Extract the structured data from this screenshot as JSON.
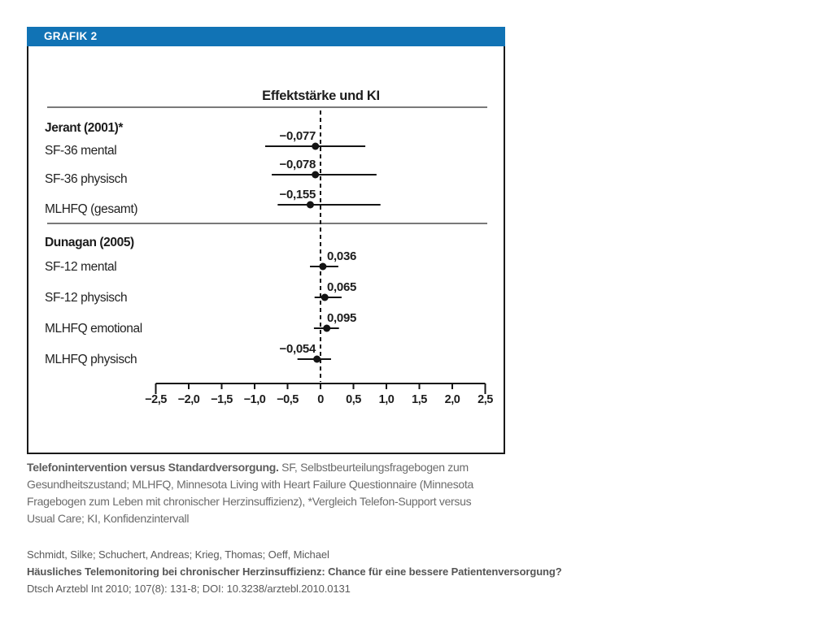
{
  "figure": {
    "header": "GRAFIK 2"
  },
  "chart_data": {
    "type": "forest",
    "title": "Effektstärke und KI",
    "xlabel": "",
    "xlim": [
      -2.5,
      2.5
    ],
    "x_tick_values": [
      -2.5,
      -2.0,
      -1.5,
      -1.0,
      -0.5,
      0,
      0.5,
      1.0,
      1.5,
      2.0,
      2.5
    ],
    "x_tick_labels": [
      "−2,5",
      "−2,0",
      "−1,5",
      "−1,0",
      "−0,5",
      "0",
      "0,5",
      "1,0",
      "1,5",
      "2,0",
      "2,5"
    ],
    "zero_line": 0,
    "grid": false,
    "groups": [
      {
        "label": "Jerant (2001)*",
        "rows": [
          {
            "label": "SF-36 mental",
            "value": -0.077,
            "value_label": "−0,077",
            "ci_low": -0.84,
            "ci_high": 0.68
          },
          {
            "label": "SF-36 physisch",
            "value": -0.078,
            "value_label": "−0,078",
            "ci_low": -0.74,
            "ci_high": 0.85
          },
          {
            "label": "MLHFQ (gesamt)",
            "value": -0.155,
            "value_label": "−0,155",
            "ci_low": -0.65,
            "ci_high": 0.91
          }
        ]
      },
      {
        "label": "Dunagan (2005)",
        "rows": [
          {
            "label": "SF-12 mental",
            "value": 0.036,
            "value_label": "0,036",
            "ci_low": -0.16,
            "ci_high": 0.27
          },
          {
            "label": "SF-12 physisch",
            "value": 0.065,
            "value_label": "0,065",
            "ci_low": -0.09,
            "ci_high": 0.32
          },
          {
            "label": "MLHFQ emotional",
            "value": 0.095,
            "value_label": "0,095",
            "ci_low": -0.1,
            "ci_high": 0.28
          },
          {
            "label": "MLHFQ physisch",
            "value": -0.054,
            "value_label": "−0,054",
            "ci_low": -0.35,
            "ci_high": 0.16
          }
        ]
      }
    ]
  },
  "caption": {
    "lines": [
      {
        "bold": "Telefonintervention versus Standardversorgung.",
        "text": " SF, Selbstbeurteilungsfragebogen zum"
      },
      {
        "text": "Gesundheitszustand; MLHFQ, Minnesota Living with Heart Failure Questionnaire (Minnesota"
      },
      {
        "text": "Fragebogen zum Leben mit chronischer Herzinsuffizienz), *Vergleich Telefon-Support versus"
      },
      {
        "text": "Usual Care; KI, Konfidenzintervall"
      }
    ]
  },
  "citation": {
    "authors": "Schmidt, Silke; Schuchert, Andreas; Krieg, Thomas; Oeff, Michael",
    "title": "Häusliches Telemonitoring bei chronischer Herzinsuffizienz: Chance für eine bessere Patientenversorgung?",
    "journal": "Dtsch Arztebl Int 2010; 107(8): 131-8; DOI: 10.3238/arztebl.2010.0131"
  },
  "colors": {
    "accent_blue": "#1173b5",
    "plot_ink": "#141414",
    "caption_gray": "#6b6b6b",
    "citation_gray": "#595959"
  }
}
